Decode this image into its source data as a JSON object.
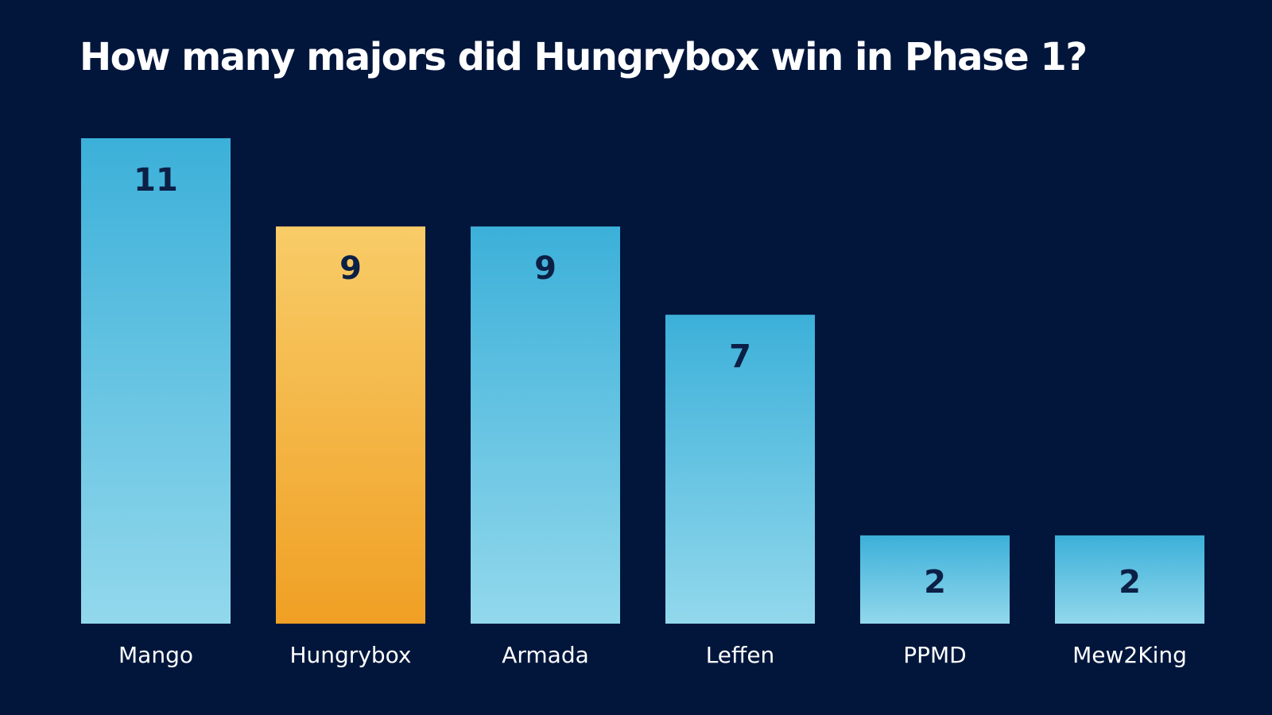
{
  "chart_data": {
    "type": "bar",
    "title": "How many majors did Hungrybox win in Phase 1?",
    "categories": [
      "Mango",
      "Hungrybox",
      "Armada",
      "Leffen",
      "PPMD",
      "Mew2King"
    ],
    "values": [
      11,
      9,
      9,
      7,
      2,
      2
    ],
    "highlight": "Hungrybox",
    "xlabel": "",
    "ylabel": "",
    "ylim": [
      0,
      11
    ],
    "grid": false,
    "colors": {
      "background": "#02163c",
      "bar_top": "#3cb0d9",
      "bar_bottom": "#92d8ec",
      "highlight_top": "#f8cc68",
      "highlight_bottom": "#f0a024",
      "value_text": "#0c1f45",
      "label_text": "#ffffff"
    }
  }
}
